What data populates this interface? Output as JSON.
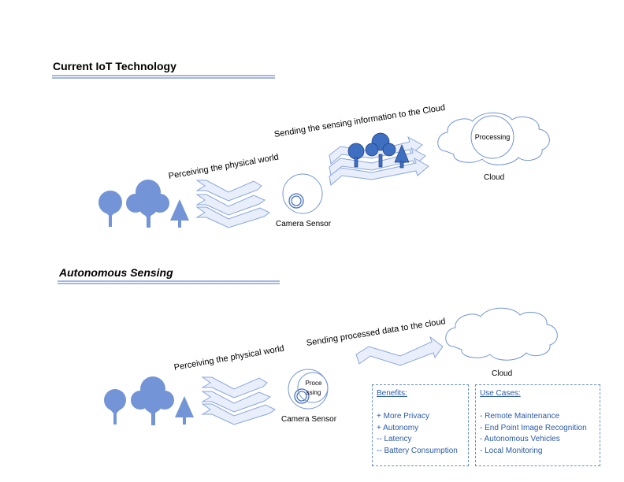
{
  "section1": {
    "title": "Current IoT Technology",
    "arrow_label_1": "Perceiving the physical world",
    "arrow_label_2": "Sending the sensing information to the Cloud",
    "sensor_label": "Camera Sensor",
    "cloud_inner": "Processing",
    "cloud_label": "Cloud"
  },
  "section2": {
    "title": "Autonomous Sensing",
    "arrow_label_1": "Perceiving the physical world",
    "arrow_label_2": "Sending processed data to the cloud",
    "sensor_inner_1": "Proce",
    "sensor_inner_2": "ssing",
    "sensor_label": "Camera Sensor",
    "cloud_label": "Cloud"
  },
  "benefits": {
    "heading": "Benefits:",
    "items": [
      "+ More Privacy",
      "+ Autonomy",
      "-- Latency",
      "-- Battery Consumption"
    ]
  },
  "use_cases": {
    "heading": "Use Cases:",
    "items": [
      "- Remote Maintenance",
      "- End Point Image Recognition",
      "- Autonomous Vehicles",
      "- Local Monitoring"
    ]
  },
  "colors": {
    "tree": "#7394d6",
    "tree_dark": "#3e6fc0",
    "arrow_fill": "#e8eefa",
    "arrow_stroke": "#8aa6dd",
    "title_rule": "#4a72c2"
  }
}
